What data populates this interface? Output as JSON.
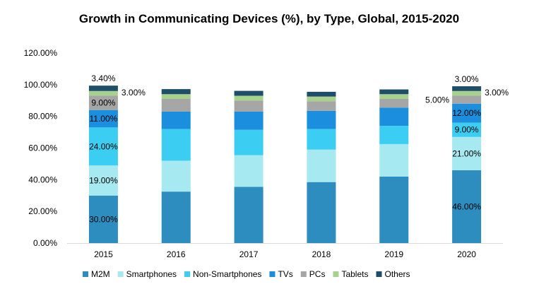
{
  "chart_data": {
    "type": "bar",
    "stacked": true,
    "title": "Growth in Communicating Devices (%), by Type, Global, 2015-2020",
    "xlabel": "",
    "ylabel": "",
    "ylim": [
      0,
      120
    ],
    "y_ticks": [
      "0.00%",
      "20.00%",
      "40.00%",
      "60.00%",
      "80.00%",
      "100.00%",
      "120.00%"
    ],
    "categories": [
      "2015",
      "2016",
      "2017",
      "2018",
      "2019",
      "2020"
    ],
    "series": [
      {
        "name": "M2M",
        "color": "#2e8dbf",
        "values": [
          30,
          32.5,
          35.5,
          38.5,
          42,
          46
        ]
      },
      {
        "name": "Smartphones",
        "color": "#a6e9f0",
        "values": [
          19,
          19.5,
          20,
          20.5,
          20.5,
          21
        ]
      },
      {
        "name": "Non-Smartphones",
        "color": "#3ccdf2",
        "values": [
          24,
          20,
          16,
          13,
          11.5,
          9
        ]
      },
      {
        "name": "TVs",
        "color": "#1b8fde",
        "values": [
          11,
          11,
          11.5,
          11.5,
          11.5,
          12
        ]
      },
      {
        "name": "PCs",
        "color": "#a6a6a6",
        "values": [
          9,
          8,
          7,
          6,
          5.5,
          5
        ]
      },
      {
        "name": "Tablets",
        "color": "#a9d18e",
        "values": [
          3,
          3,
          3,
          3,
          3,
          3
        ]
      },
      {
        "name": "Others",
        "color": "#1f4e6b",
        "values": [
          3.4,
          3.2,
          3.1,
          3,
          3,
          3
        ]
      }
    ],
    "data_labels": [
      {
        "category": "2015",
        "series": "M2M",
        "text": "30.00%"
      },
      {
        "category": "2015",
        "series": "Smartphones",
        "text": "19.00%"
      },
      {
        "category": "2015",
        "series": "Non-Smartphones",
        "text": "24.00%"
      },
      {
        "category": "2015",
        "series": "TVs",
        "text": "11.00%"
      },
      {
        "category": "2015",
        "series": "PCs",
        "text": "9.00%"
      },
      {
        "category": "2015",
        "series": "Tablets",
        "text": "3.00%"
      },
      {
        "category": "2015",
        "series": "Others",
        "text": "3.40%"
      },
      {
        "category": "2020",
        "series": "M2M",
        "text": "46.00%"
      },
      {
        "category": "2020",
        "series": "Smartphones",
        "text": "21.00%"
      },
      {
        "category": "2020",
        "series": "Non-Smartphones",
        "text": "9.00%"
      },
      {
        "category": "2020",
        "series": "TVs",
        "text": "12.00%"
      },
      {
        "category": "2020",
        "series": "PCs",
        "text": "5.00%"
      },
      {
        "category": "2020",
        "series": "Tablets",
        "text": "3.00%"
      },
      {
        "category": "2020",
        "series": "Others",
        "text": "3.00%"
      }
    ],
    "grid": false,
    "legend_position": "bottom"
  }
}
